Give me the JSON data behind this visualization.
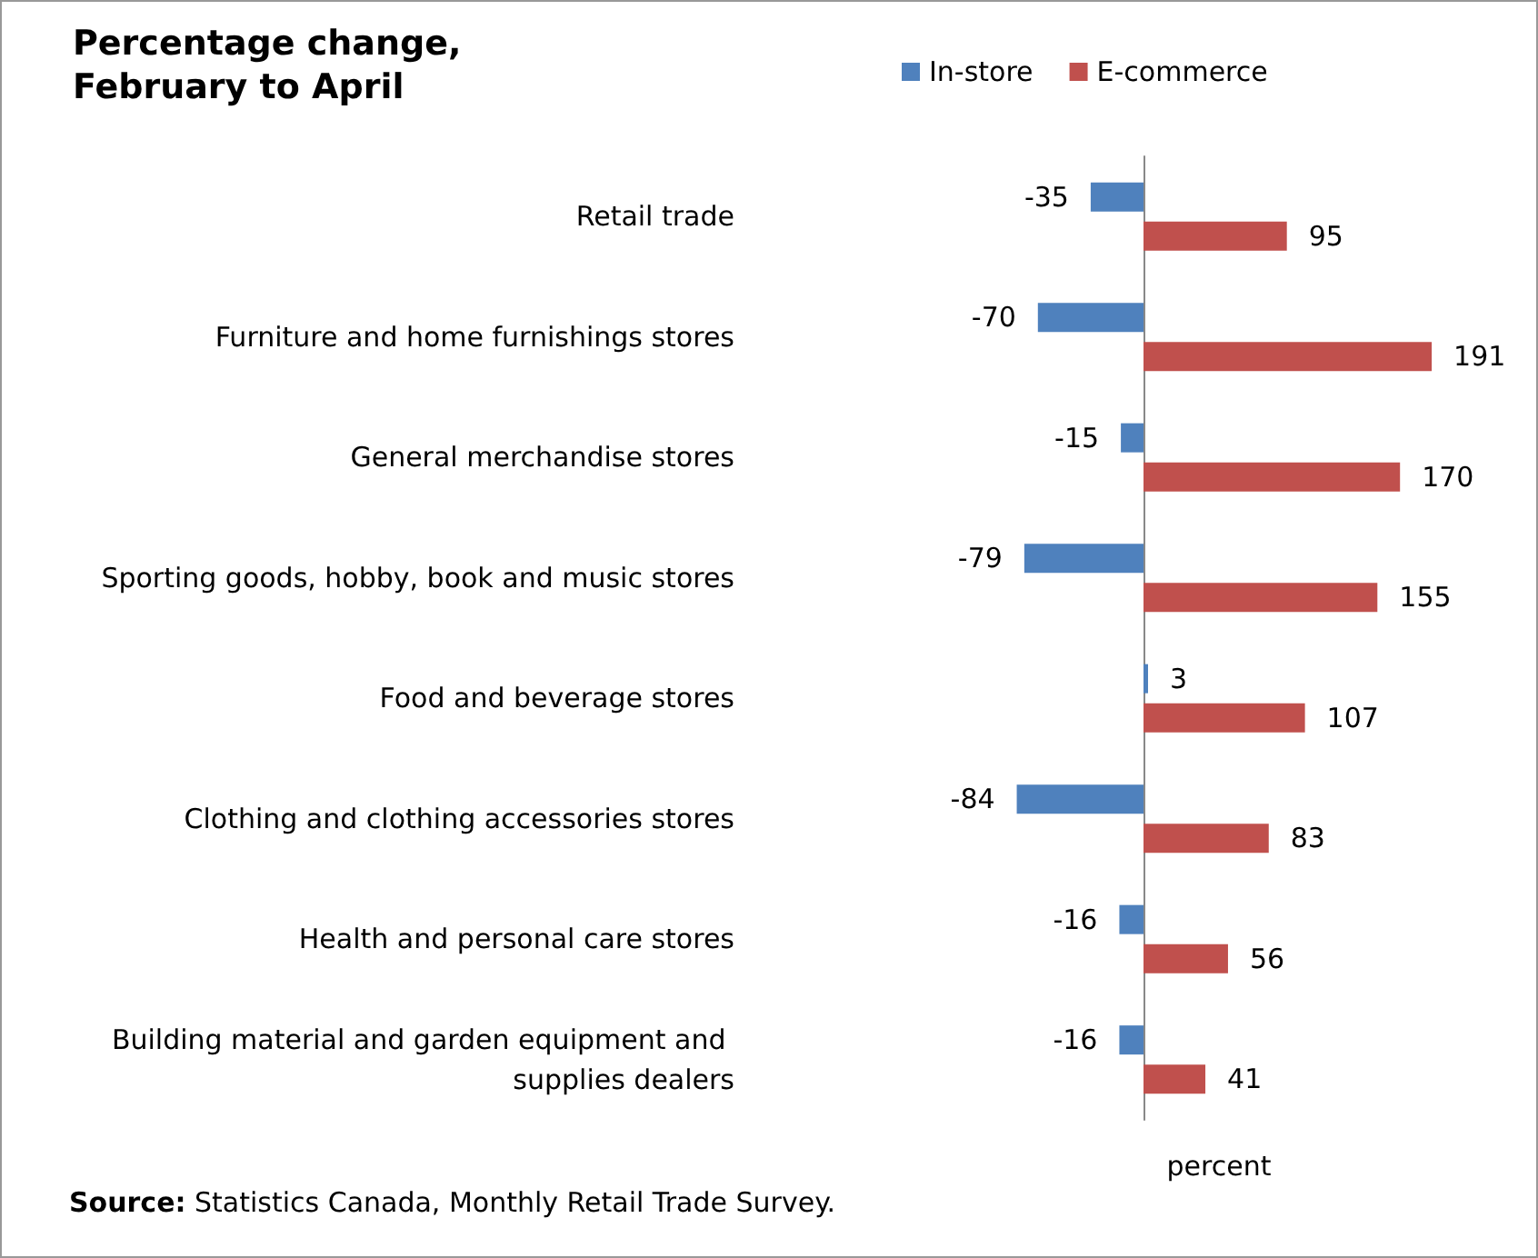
{
  "chart_data": {
    "type": "bar",
    "orientation": "horizontal",
    "title": "Percentage change,\nFebruary to April",
    "xlabel": "percent",
    "tick_labels": "y",
    "categories": [
      "Retail trade",
      "Furniture and home furnishings stores",
      "General merchandise stores",
      "Sporting goods, hobby, book and music stores",
      "Food and beverage stores",
      "Clothing and clothing accessories stores",
      "Health and personal care stores",
      "Building material and garden equipment and supplies dealers"
    ],
    "series": [
      {
        "name": "In-store",
        "color": "#4f81bd",
        "values": [
          -35,
          -70,
          -15,
          -79,
          3,
          -84,
          -16,
          -16
        ]
      },
      {
        "name": "E-commerce",
        "color": "#c0504d",
        "values": [
          95,
          191,
          170,
          155,
          107,
          83,
          56,
          41
        ]
      }
    ],
    "data_labels": true,
    "legend": "top",
    "grid": false,
    "annotations": [
      "Source: Statistics Canada, Monthly Retail Trade Survey."
    ]
  }
}
